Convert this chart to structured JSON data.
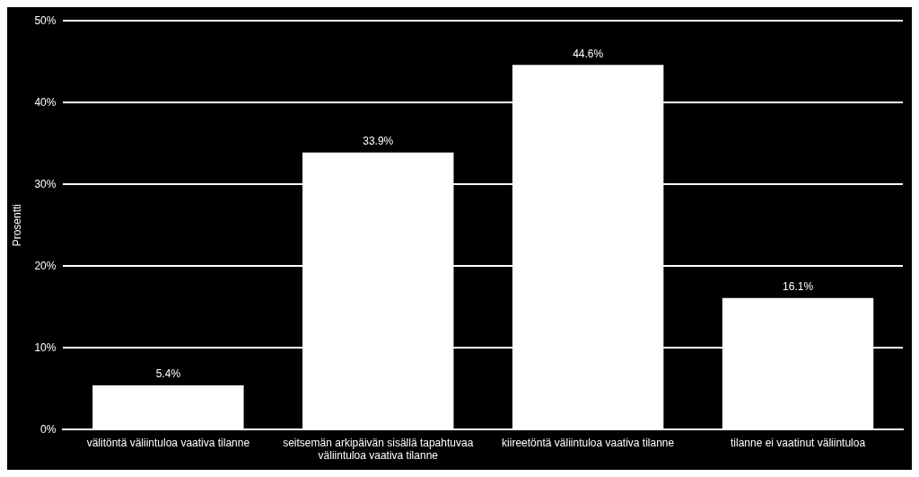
{
  "chart_data": {
    "type": "bar",
    "ylabel": "Prosentti",
    "categories": [
      "välitöntä väliintuloa vaativa tilanne",
      "seitsemän arkipäivän sisällä tapahtuvaa väliintuloa vaativa tilanne",
      "kiireetöntä väliintuloa vaativa tilanne",
      "tilanne ei vaatinut väliintuloa"
    ],
    "values": [
      5.4,
      33.9,
      44.6,
      16.1
    ],
    "value_labels": [
      "5.4%",
      "33.9%",
      "44.6%",
      "16.1%"
    ],
    "color": "#ffffff",
    "ylim": [
      0,
      50
    ],
    "yticks": [
      {
        "value": 0,
        "label": "0%"
      },
      {
        "value": 10,
        "label": "10%"
      },
      {
        "value": 20,
        "label": "20%"
      },
      {
        "value": 30,
        "label": "30%"
      },
      {
        "value": 40,
        "label": "40%"
      },
      {
        "value": 50,
        "label": "50%"
      }
    ],
    "grid": "y"
  }
}
